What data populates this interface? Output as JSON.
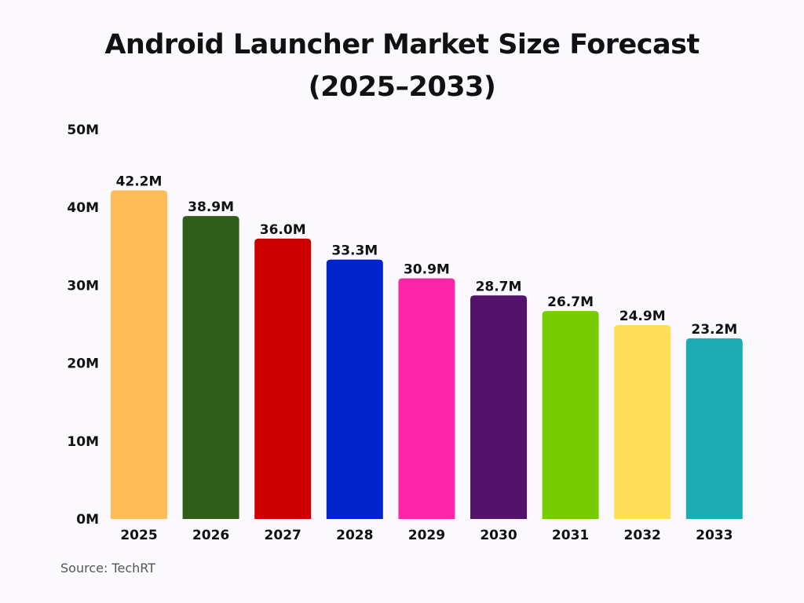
{
  "chart_data": {
    "type": "bar",
    "title": "Android Launcher Market Size Forecast (2025–2033)",
    "title_lines": [
      "Android Launcher Market Size Forecast",
      "(2025–2033)"
    ],
    "categories": [
      "2025",
      "2026",
      "2027",
      "2028",
      "2029",
      "2030",
      "2031",
      "2032",
      "2033"
    ],
    "values": [
      42.2,
      38.9,
      36.0,
      33.3,
      30.9,
      28.7,
      26.7,
      24.9,
      23.2
    ],
    "data_labels": [
      "42.2M",
      "38.9M",
      "36.0M",
      "33.3M",
      "30.9M",
      "28.7M",
      "26.7M",
      "24.9M",
      "23.2M"
    ],
    "colors": [
      "#ffbd59",
      "#2e5e1a",
      "#cc0000",
      "#0023cc",
      "#ff25a8",
      "#54136b",
      "#77cc00",
      "#ffde59",
      "#1fabb2"
    ],
    "ylim": [
      0,
      50
    ],
    "yticks": [
      0,
      10,
      20,
      30,
      40,
      50
    ],
    "ytick_labels": [
      "0M",
      "10M",
      "20M",
      "30M",
      "40M",
      "50M"
    ],
    "xlabel": "",
    "ylabel": "",
    "grid": false,
    "legend": "none"
  },
  "source": "Source: TechRT"
}
